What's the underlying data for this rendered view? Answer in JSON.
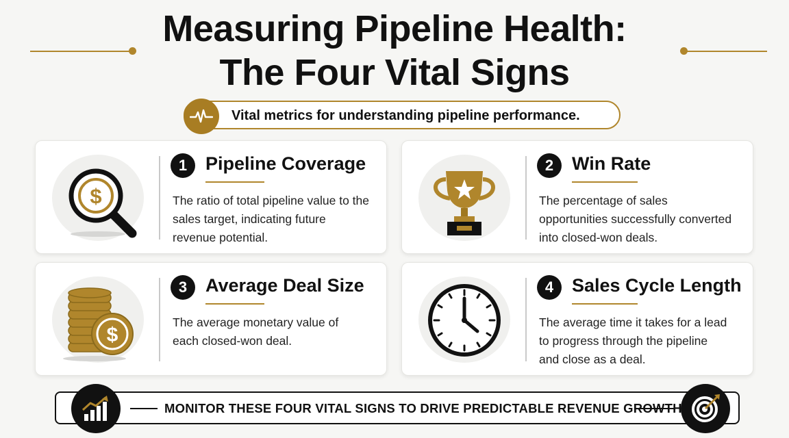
{
  "title": {
    "line1": "Measuring Pipeline Health:",
    "line2": "The Four Vital Signs"
  },
  "subtitle": {
    "text": "Vital metrics for understanding pipeline performance.",
    "icon": "heartbeat-icon"
  },
  "colors": {
    "gold": "#b0862c",
    "dark": "#111111",
    "background": "#f6f6f4"
  },
  "cards": [
    {
      "number": "1",
      "title": "Pipeline Coverage",
      "description": "The ratio of total pipeline value to the sales target, indicating future revenue potential.",
      "icon": "magnifying-glass-dollar-icon"
    },
    {
      "number": "2",
      "title": "Win Rate",
      "description": "The percentage of sales opportunities successfully converted into closed-won deals.",
      "icon": "trophy-icon"
    },
    {
      "number": "3",
      "title": "Average Deal Size",
      "description": "The average monetary value of each closed-won deal.",
      "icon": "coin-stack-icon"
    },
    {
      "number": "4",
      "title": "Sales Cycle Length",
      "description": "The average time it takes for a lead to progress through the pipeline and close as a deal.",
      "icon": "clock-icon"
    }
  ],
  "footer": {
    "text": "MONITOR THESE FOUR VITAL SIGNS TO DRIVE PREDICTABLE REVENUE GROWTH.",
    "left_icon": "growth-chart-icon",
    "right_icon": "target-arrow-icon"
  }
}
